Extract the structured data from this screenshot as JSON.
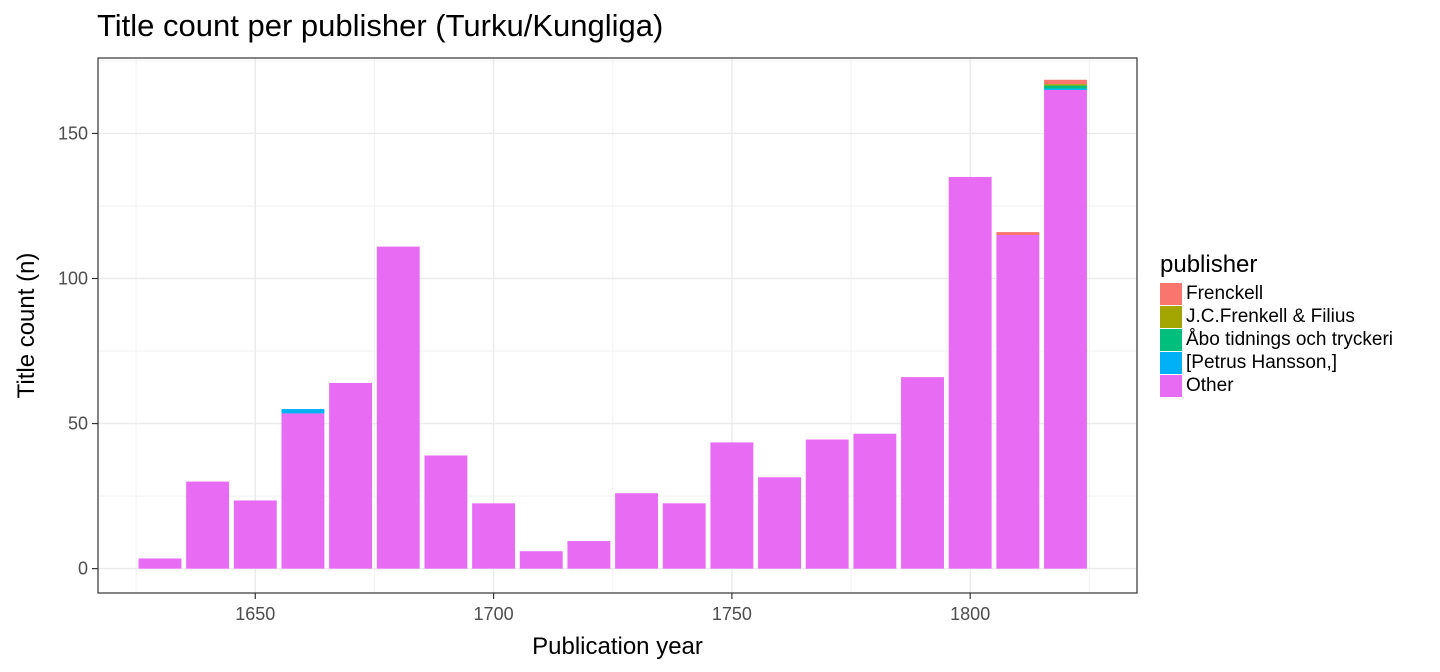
{
  "chart_data": {
    "type": "bar",
    "stacked": true,
    "title": "Title count per publisher (Turku/Kungliga)",
    "xlabel": "Publication year",
    "ylabel": "Title count (n)",
    "xlim": [
      1617,
      1835
    ],
    "ylim": [
      -8.4,
      176
    ],
    "x_ticks": [
      1650,
      1700,
      1750,
      1800
    ],
    "y_ticks": [
      0,
      50,
      100,
      150
    ],
    "grid": true,
    "legend_title": "publisher",
    "legend_position": "right",
    "bin_width": 10,
    "x": [
      1630,
      1640,
      1650,
      1660,
      1670,
      1680,
      1690,
      1700,
      1710,
      1720,
      1730,
      1740,
      1750,
      1760,
      1770,
      1780,
      1790,
      1800,
      1810,
      1820
    ],
    "series": [
      {
        "name": "Frenckell",
        "color": "#F8766D",
        "values": [
          0,
          0,
          0,
          0,
          0,
          0,
          0,
          0,
          0,
          0,
          0,
          0,
          0,
          0,
          0,
          0,
          0,
          0,
          1,
          1.5
        ]
      },
      {
        "name": "J.C.Frenkell & Filius",
        "color": "#A3A500",
        "values": [
          0,
          0,
          0,
          0,
          0,
          0,
          0,
          0,
          0,
          0,
          0,
          0,
          0,
          0,
          0,
          0,
          0,
          0,
          0,
          0.5
        ]
      },
      {
        "name": "Åbo tidnings och tryckeri",
        "color": "#00BF7D",
        "values": [
          0,
          0,
          0,
          0,
          0,
          0,
          0,
          0,
          0,
          0,
          0,
          0,
          0,
          0,
          0,
          0,
          0,
          0,
          0,
          1
        ]
      },
      {
        "name": "[Petrus Hansson,]",
        "color": "#00B0F6",
        "values": [
          0,
          0,
          0,
          1.5,
          0,
          0,
          0,
          0,
          0,
          0,
          0,
          0,
          0,
          0,
          0,
          0,
          0,
          0,
          0,
          0.5
        ]
      },
      {
        "name": "Other",
        "color": "#E76BF3",
        "values": [
          3.5,
          30,
          23.5,
          53.5,
          64,
          111,
          39,
          22.5,
          6,
          9.5,
          26,
          22.5,
          43.5,
          31.5,
          44.5,
          46.5,
          66,
          135,
          115,
          165
        ]
      }
    ]
  }
}
